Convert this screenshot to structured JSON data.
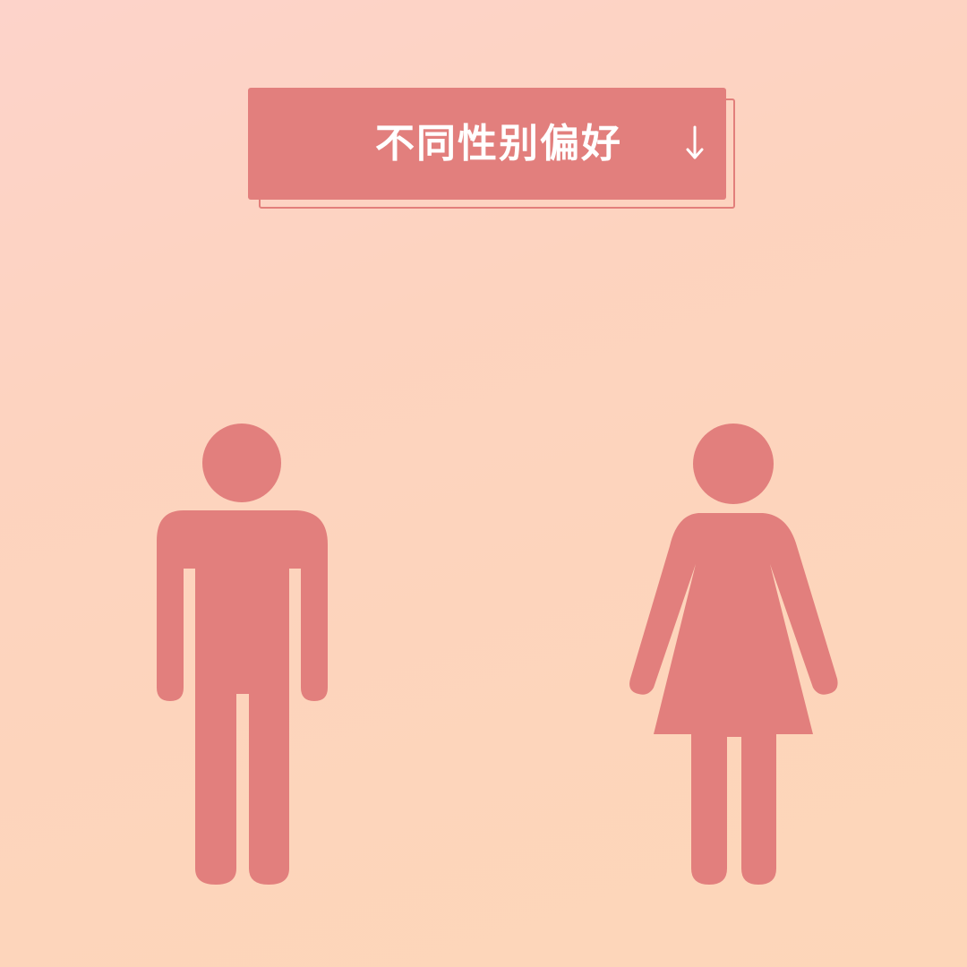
{
  "banner": {
    "title": "不同性别偏好",
    "arrow_icon": "arrow-down-icon"
  },
  "figures": {
    "male_icon": "male-person-icon",
    "female_icon": "female-person-icon"
  },
  "colors": {
    "accent": "#e27f7d",
    "background_light": "#fdd3ca",
    "background_warm": "#fdd6b9",
    "text_on_accent": "#ffffff"
  }
}
